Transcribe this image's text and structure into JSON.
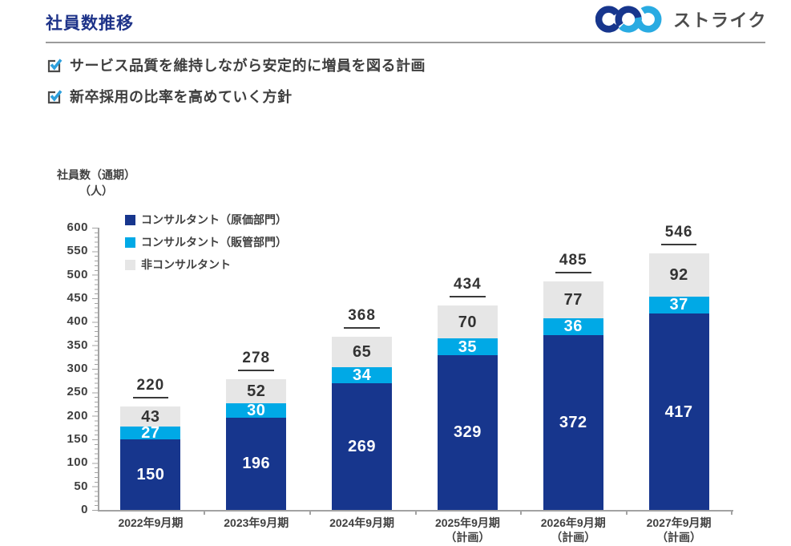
{
  "header": {
    "title": "社員数推移",
    "logo_text": "ストライク"
  },
  "bullets": [
    {
      "text": "サービス品質を維持しながら安定的に増員を図る計画"
    },
    {
      "text": "新卒採用の比率を高めていく方針"
    }
  ],
  "colors": {
    "title_navy": "#1E3389",
    "bar_navy": "#17368D",
    "bar_cyan": "#00A9E6",
    "bar_gray": "#E6E6E6",
    "check_blue": "#2D9FDC",
    "axis_gray": "#A3A3A3",
    "text_dark": "#404040"
  },
  "chart_data": {
    "type": "bar",
    "stacked": true,
    "title": "社員数推移",
    "ylabel_line1": "社員数（通期）",
    "ylabel_line2": "（人）",
    "ylim": [
      0,
      600
    ],
    "yticks": [
      600,
      550,
      500,
      450,
      400,
      350,
      300,
      250,
      200,
      150,
      100,
      50,
      0
    ],
    "grid": false,
    "legend_position": "top-left-inside",
    "categories": [
      "2022年9月期",
      "2023年9月期",
      "2024年9月期",
      "2025年9月期",
      "2026年9月期",
      "2027年9月期"
    ],
    "category_sublabels": [
      "",
      "",
      "",
      "（計画）",
      "（計画）",
      "（計画）"
    ],
    "series": [
      {
        "name": "コンサルタント（原価部門）",
        "color": "#17368D",
        "text_color": "#FFFFFF",
        "values": [
          150,
          196,
          269,
          329,
          372,
          417
        ]
      },
      {
        "name": "コンサルタント（販管部門）",
        "color": "#00A9E6",
        "text_color": "#FFFFFF",
        "values": [
          27,
          30,
          34,
          35,
          36,
          37
        ]
      },
      {
        "name": "非コンサルタント",
        "color": "#E6E6E6",
        "text_color": "#333333",
        "values": [
          43,
          52,
          65,
          70,
          77,
          92
        ]
      }
    ],
    "totals": [
      220,
      278,
      368,
      434,
      485,
      546
    ]
  }
}
